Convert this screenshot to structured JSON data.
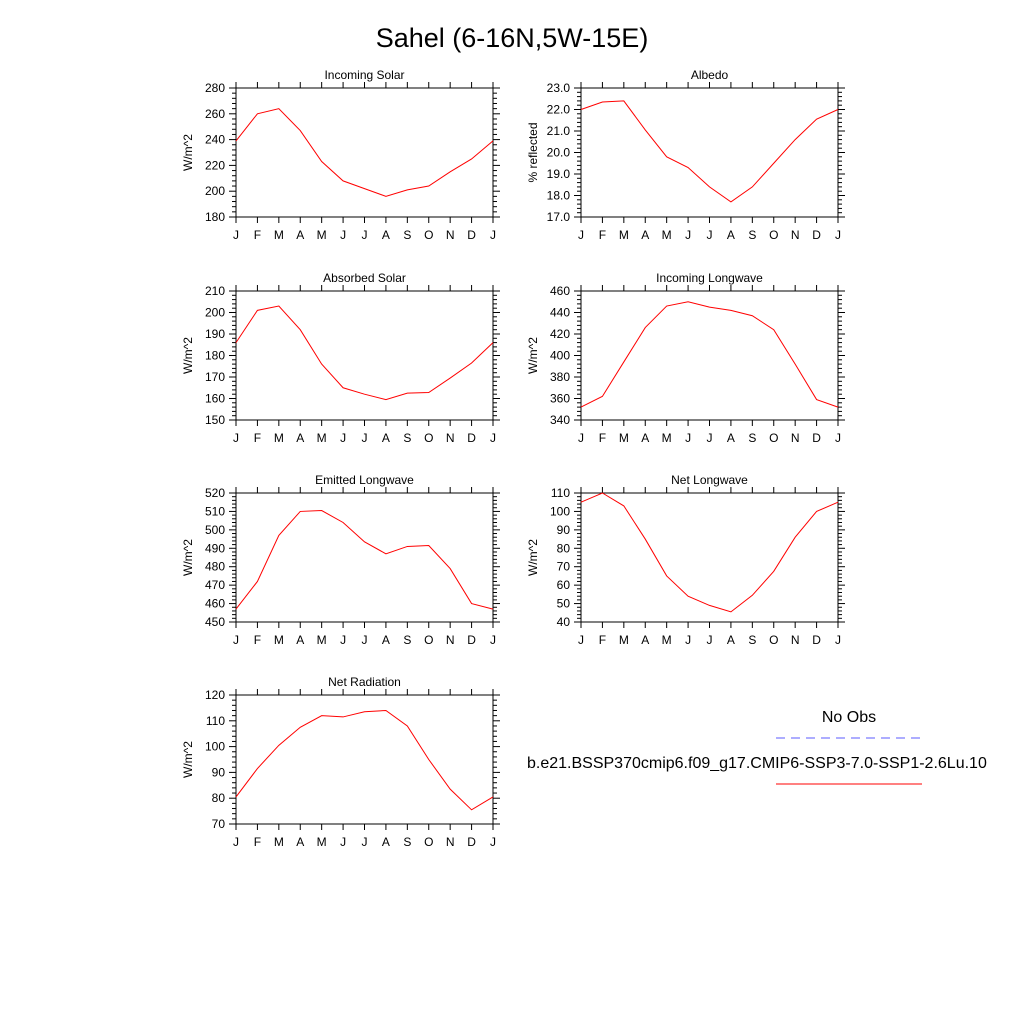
{
  "figure": {
    "title": "Sahel (6-16N,5W-15E)",
    "months": [
      "J",
      "F",
      "M",
      "A",
      "M",
      "J",
      "J",
      "A",
      "S",
      "O",
      "N",
      "D",
      "J"
    ]
  },
  "legend": {
    "obs_label": "No Obs",
    "obs_color": "#5b5bff",
    "model_label": "b.e21.BSSP370cmip6.f09_g17.CMIP6-SSP3-7.0-SSP1-2.6Lu.10",
    "model_color": "#ff0000"
  },
  "chart_data": [
    {
      "type": "line",
      "title": "Incoming Solar",
      "ylabel": "W/m^2",
      "ylim": [
        180,
        280
      ],
      "yticks": [
        180,
        200,
        220,
        240,
        260,
        280
      ],
      "ytick_labels": [
        "180",
        "200",
        "220",
        "240",
        "260",
        "280"
      ],
      "x": [
        "J",
        "F",
        "M",
        "A",
        "M",
        "J",
        "J",
        "A",
        "S",
        "O",
        "N",
        "D",
        "J"
      ],
      "series": [
        {
          "values": [
            239,
            260,
            264,
            247,
            223,
            208,
            202,
            196,
            201,
            204,
            215,
            225,
            239
          ],
          "color": "#ff0000"
        }
      ]
    },
    {
      "type": "line",
      "title": "Albedo",
      "ylabel": "% reflected",
      "ylim": [
        17.0,
        23.0
      ],
      "yticks": [
        17,
        18,
        19,
        20,
        21,
        22,
        23
      ],
      "ytick_labels": [
        "17.0",
        "18.0",
        "19.0",
        "20.0",
        "21.0",
        "22.0",
        "23.0"
      ],
      "x": [
        "J",
        "F",
        "M",
        "A",
        "M",
        "J",
        "J",
        "A",
        "S",
        "O",
        "N",
        "D",
        "J"
      ],
      "series": [
        {
          "values": [
            22.0,
            22.35,
            22.4,
            21.05,
            19.8,
            19.3,
            18.4,
            17.7,
            18.4,
            19.5,
            20.6,
            21.55,
            22.0
          ],
          "color": "#ff0000"
        }
      ]
    },
    {
      "type": "line",
      "title": "Absorbed Solar",
      "ylabel": "W/m^2",
      "ylim": [
        150,
        210
      ],
      "yticks": [
        150,
        160,
        170,
        180,
        190,
        200,
        210
      ],
      "ytick_labels": [
        "150",
        "160",
        "170",
        "180",
        "190",
        "200",
        "210"
      ],
      "x": [
        "J",
        "F",
        "M",
        "A",
        "M",
        "J",
        "J",
        "A",
        "S",
        "O",
        "N",
        "D",
        "J"
      ],
      "series": [
        {
          "values": [
            186,
            201,
            203,
            192,
            176,
            165,
            162,
            159.5,
            162.5,
            162.8,
            169.5,
            176.5,
            186
          ],
          "color": "#ff0000"
        }
      ]
    },
    {
      "type": "line",
      "title": "Incoming Longwave",
      "ylabel": "W/m^2",
      "ylim": [
        340,
        460
      ],
      "yticks": [
        340,
        360,
        380,
        400,
        420,
        440,
        460
      ],
      "ytick_labels": [
        "340",
        "360",
        "380",
        "400",
        "420",
        "440",
        "460"
      ],
      "x": [
        "J",
        "F",
        "M",
        "A",
        "M",
        "J",
        "J",
        "A",
        "S",
        "O",
        "N",
        "D",
        "J"
      ],
      "series": [
        {
          "values": [
            352,
            362,
            394,
            426,
            446,
            450,
            445,
            442,
            437,
            424,
            392,
            359,
            352
          ],
          "color": "#ff0000"
        }
      ]
    },
    {
      "type": "line",
      "title": "Emitted Longwave",
      "ylabel": "W/m^2",
      "ylim": [
        450,
        520
      ],
      "yticks": [
        450,
        460,
        470,
        480,
        490,
        500,
        510,
        520
      ],
      "ytick_labels": [
        "450",
        "460",
        "470",
        "480",
        "490",
        "500",
        "510",
        "520"
      ],
      "x": [
        "J",
        "F",
        "M",
        "A",
        "M",
        "J",
        "J",
        "A",
        "S",
        "O",
        "N",
        "D",
        "J"
      ],
      "series": [
        {
          "values": [
            457,
            472,
            497,
            510,
            510.5,
            504,
            493.5,
            487,
            491,
            491.5,
            479,
            460,
            457
          ],
          "color": "#ff0000"
        }
      ]
    },
    {
      "type": "line",
      "title": "Net Longwave",
      "ylabel": "W/m^2",
      "ylim": [
        40,
        110
      ],
      "yticks": [
        40,
        50,
        60,
        70,
        80,
        90,
        100,
        110
      ],
      "ytick_labels": [
        "40",
        "50",
        "60",
        "70",
        "80",
        "90",
        "100",
        "110"
      ],
      "x": [
        "J",
        "F",
        "M",
        "A",
        "M",
        "J",
        "J",
        "A",
        "S",
        "O",
        "N",
        "D",
        "J"
      ],
      "series": [
        {
          "values": [
            105,
            110,
            103,
            85,
            65,
            54,
            49,
            45.5,
            54.5,
            67.5,
            86,
            100,
            105
          ],
          "color": "#ff0000"
        }
      ]
    },
    {
      "type": "line",
      "title": "Net Radiation",
      "ylabel": "W/m^2",
      "ylim": [
        70,
        120
      ],
      "yticks": [
        70,
        80,
        90,
        100,
        110,
        120
      ],
      "ytick_labels": [
        "70",
        "80",
        "90",
        "100",
        "110",
        "120"
      ],
      "x": [
        "J",
        "F",
        "M",
        "A",
        "M",
        "J",
        "J",
        "A",
        "S",
        "O",
        "N",
        "D",
        "J"
      ],
      "series": [
        {
          "values": [
            80.5,
            91.5,
            100.5,
            107.5,
            112,
            111.5,
            113.5,
            114,
            108,
            95,
            83.5,
            75.5,
            80.5
          ],
          "color": "#ff0000"
        }
      ]
    }
  ]
}
